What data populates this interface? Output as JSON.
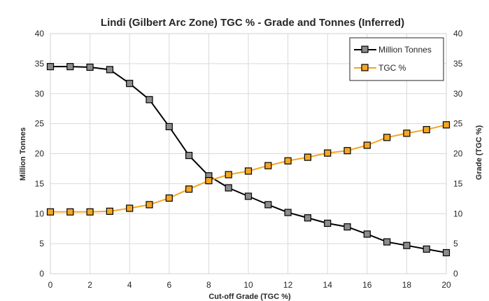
{
  "chart_data": {
    "type": "line",
    "title": "Lindi (Gilbert Arc Zone) TGC % - Grade and Tonnes (Inferred)",
    "xlabel": "Cut-off Grade (TGC %)",
    "ylabel": "Million Tonnes",
    "y2label": "Grade (TGC %)",
    "xlim": [
      0,
      20
    ],
    "ylim": [
      0,
      40
    ],
    "y2lim": [
      0,
      40
    ],
    "xticks": [
      "0",
      "2",
      "4",
      "6",
      "8",
      "10",
      "12",
      "14",
      "16",
      "18",
      "20"
    ],
    "yticks": [
      "0",
      "5",
      "10",
      "15",
      "20",
      "25",
      "30",
      "35",
      "40"
    ],
    "y2ticks": [
      "0",
      "5",
      "10",
      "15",
      "20",
      "25",
      "30",
      "35",
      "40"
    ],
    "grid": true,
    "legend_position": "top-right",
    "x": [
      0,
      1,
      2,
      3,
      4,
      5,
      6,
      7,
      8,
      9,
      10,
      11,
      12,
      13,
      14,
      15,
      16,
      17,
      18,
      19,
      20
    ],
    "series": [
      {
        "name": "Million Tonnes",
        "axis": "left",
        "color": "#000000",
        "marker_fill": "#8c8c8c",
        "values": [
          34.5,
          34.5,
          34.4,
          34.0,
          31.7,
          29.0,
          24.5,
          19.7,
          16.3,
          14.3,
          12.9,
          11.5,
          10.2,
          9.3,
          8.4,
          7.8,
          6.6,
          5.3,
          4.7,
          4.1,
          3.5
        ]
      },
      {
        "name": "TGC %",
        "axis": "right",
        "color": "#f5a623",
        "marker_fill": "#f5a623",
        "values": [
          10.3,
          10.3,
          10.3,
          10.4,
          10.9,
          11.5,
          12.6,
          14.1,
          15.5,
          16.5,
          17.1,
          18.0,
          18.8,
          19.4,
          20.1,
          20.5,
          21.4,
          22.7,
          23.4,
          24.0,
          24.8
        ]
      }
    ]
  }
}
